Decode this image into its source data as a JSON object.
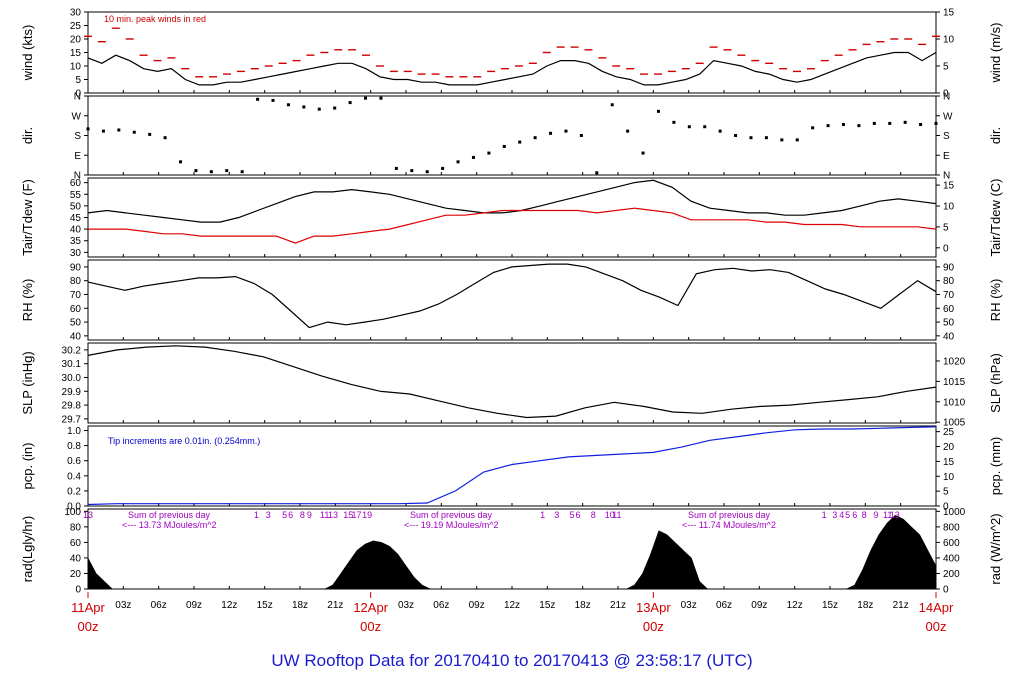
{
  "title": "UW Rooftop Data for 20170410  to  20170413 @ 23:58:17  (UTC)",
  "chart_data": {
    "type": "line",
    "x_start": "2017-04-11 00z",
    "x_end": "2017-04-14 00z",
    "panels": [
      {
        "id": "wind",
        "ylabel_left": "wind (kts)",
        "ylabel_right": "wind (m/s)",
        "left_ticks": [
          "0",
          "5",
          "10",
          "15",
          "20",
          "25",
          "30"
        ],
        "right_ticks": [
          "0",
          "5",
          "10",
          "15"
        ],
        "annotation": "10 min. peak winds in red",
        "series": [
          {
            "name": "wind (kts)",
            "color": "#000000",
            "values": [
              13,
              11,
              14,
              12,
              9,
              8,
              9,
              5,
              3,
              3,
              4,
              4,
              5,
              6,
              7,
              8,
              9,
              10,
              11,
              11,
              9,
              6,
              5,
              5,
              4,
              4,
              3,
              3,
              3,
              4,
              5,
              6,
              7,
              10,
              12,
              12,
              11,
              8,
              6,
              5,
              3,
              3,
              4,
              5,
              7,
              12,
              11,
              10,
              8,
              7,
              5,
              4,
              5,
              7,
              9,
              11,
              13,
              14,
              15,
              15,
              12,
              15
            ]
          },
          {
            "name": "peak wind",
            "color": "#d00000",
            "values": [
              21,
              19,
              24,
              20,
              14,
              12,
              13,
              9,
              6,
              6,
              7,
              8,
              9,
              10,
              11,
              12,
              14,
              15,
              16,
              16,
              14,
              10,
              8,
              8,
              7,
              7,
              6,
              6,
              6,
              8,
              9,
              10,
              11,
              15,
              17,
              17,
              16,
              13,
              10,
              9,
              7,
              7,
              8,
              9,
              11,
              17,
              16,
              14,
              12,
              11,
              9,
              8,
              9,
              12,
              14,
              16,
              18,
              19,
              20,
              20,
              18,
              21
            ]
          }
        ]
      },
      {
        "id": "dir",
        "ylabel_left": "dir.",
        "ylabel_right": "dir.",
        "left_ticks": [
          "N",
          "E",
          "S",
          "W",
          "N"
        ],
        "right_ticks": [
          "N",
          "E",
          "S",
          "W",
          "N"
        ],
        "series": [
          {
            "name": "wind direction (deg)",
            "values": [
              210,
              200,
              205,
              195,
              185,
              170,
              60,
              20,
              15,
              20,
              15,
              345,
              340,
              320,
              310,
              300,
              305,
              330,
              350,
              350,
              30,
              20,
              15,
              30,
              60,
              80,
              100,
              130,
              150,
              170,
              190,
              200,
              180,
              10,
              320,
              200,
              100,
              290,
              240,
              220,
              220,
              200,
              180,
              170,
              170,
              160,
              160,
              215,
              225,
              230,
              225,
              235,
              235,
              240,
              230,
              235
            ]
          }
        ]
      },
      {
        "id": "temp",
        "ylabel_left": "Tair/Tdew (F)",
        "ylabel_right": "Tair/Tdew (C)",
        "left_ticks": [
          "30",
          "35",
          "40",
          "45",
          "50",
          "55",
          "60"
        ],
        "right_ticks": [
          "0",
          "5",
          "10",
          "15"
        ],
        "series": [
          {
            "name": "Tair",
            "color": "#000000",
            "values": [
              47,
              48,
              47,
              46,
              45,
              44,
              43,
              43,
              45,
              48,
              51,
              54,
              56,
              56,
              57,
              56,
              55,
              53,
              51,
              49,
              48,
              47,
              47,
              48,
              50,
              52,
              54,
              56,
              58,
              60,
              61,
              58,
              52,
              49,
              48,
              47,
              47,
              46,
              46,
              47,
              48,
              50,
              52,
              53,
              52,
              51
            ]
          },
          {
            "name": "Tdew",
            "color": "#e00000",
            "values": [
              40,
              40,
              40,
              39,
              38,
              38,
              37,
              37,
              37,
              37,
              37,
              34,
              37,
              37,
              38,
              39,
              40,
              42,
              44,
              46,
              46,
              47,
              48,
              48,
              48,
              48,
              48,
              47,
              48,
              49,
              48,
              47,
              44,
              44,
              44,
              44,
              43,
              43,
              42,
              42,
              42,
              41,
              41,
              41,
              41,
              40
            ]
          }
        ]
      },
      {
        "id": "rh",
        "ylabel_left": "RH (%)",
        "ylabel_right": "RH (%)",
        "left_ticks": [
          "40",
          "50",
          "60",
          "70",
          "80",
          "90"
        ],
        "right_ticks": [
          "40",
          "50",
          "60",
          "70",
          "80",
          "90"
        ],
        "series": [
          {
            "name": "RH",
            "color": "#000000",
            "values": [
              79,
              76,
              73,
              76,
              78,
              80,
              82,
              82,
              83,
              78,
              70,
              58,
              46,
              50,
              48,
              50,
              52,
              55,
              58,
              63,
              70,
              78,
              86,
              90,
              91,
              92,
              92,
              90,
              85,
              80,
              73,
              68,
              62,
              85,
              88,
              89,
              87,
              88,
              86,
              80,
              74,
              70,
              65,
              60,
              70,
              80,
              72
            ]
          }
        ]
      },
      {
        "id": "slp",
        "ylabel_left": "SLP (inHg)",
        "ylabel_right": "SLP (hPa)",
        "left_ticks": [
          "29.7",
          "29.8",
          "29.9",
          "30.0",
          "30.1",
          "30.2"
        ],
        "right_ticks": [
          "1005",
          "1010",
          "1015",
          "1020"
        ],
        "series": [
          {
            "name": "SLP",
            "color": "#000000",
            "values": [
              30.16,
              30.2,
              30.22,
              30.23,
              30.22,
              30.19,
              30.15,
              30.08,
              30.01,
              29.95,
              29.9,
              29.88,
              29.83,
              29.78,
              29.74,
              29.71,
              29.72,
              29.78,
              29.82,
              29.79,
              29.75,
              29.74,
              29.77,
              29.79,
              29.8,
              29.82,
              29.84,
              29.86,
              29.9,
              29.93
            ]
          }
        ]
      },
      {
        "id": "pcp",
        "ylabel_left": "pcp. (in)",
        "ylabel_right": "pcp. (mm)",
        "left_ticks": [
          "0.0",
          "0.2",
          "0.4",
          "0.6",
          "0.8",
          "1.0"
        ],
        "right_ticks": [
          "0",
          "5",
          "10",
          "15",
          "20",
          "25"
        ],
        "annotation": "Tip increments are 0.01in. (0.254mm.)",
        "series": [
          {
            "name": "precip",
            "color": "#1020e0",
            "values": [
              0.02,
              0.03,
              0.03,
              0.03,
              0.03,
              0.03,
              0.03,
              0.03,
              0.03,
              0.03,
              0.03,
              0.03,
              0.04,
              0.2,
              0.45,
              0.55,
              0.6,
              0.65,
              0.67,
              0.69,
              0.71,
              0.78,
              0.87,
              0.92,
              0.97,
              1.01,
              1.02,
              1.02,
              1.03,
              1.04,
              1.05
            ]
          }
        ]
      },
      {
        "id": "rad",
        "ylabel_left": "rad(Lgly/hr)",
        "ylabel_right": "rad (W/m^2)",
        "left_ticks": [
          "0",
          "20",
          "40",
          "60",
          "80",
          "100"
        ],
        "right_ticks": [
          "0",
          "200",
          "400",
          "600",
          "800",
          "1000"
        ],
        "annotations": [
          {
            "label": "Sum of previous day",
            "value": "<--- 13.73 MJoules/m^2"
          },
          {
            "label": "Sum of previous day",
            "value": "<--- 19.19 MJoules/m^2"
          },
          {
            "label": "Sum of previous day",
            "value": "<--- 11.74 MJoules/m^2"
          }
        ],
        "hour_marks": [
          {
            "day": 0,
            "marks": [
              {
                "h": 0,
                "t": "13"
              },
              {
                "h": 14.3,
                "t": "1"
              },
              {
                "h": 15.3,
                "t": "3"
              },
              {
                "h": 16.7,
                "t": "5"
              },
              {
                "h": 17.2,
                "t": "6"
              },
              {
                "h": 18.2,
                "t": "8"
              },
              {
                "h": 18.8,
                "t": "9"
              },
              {
                "h": 20.1,
                "t": "11"
              },
              {
                "h": 20.8,
                "t": "13"
              },
              {
                "h": 22.1,
                "t": "15"
              },
              {
                "h": 22.8,
                "t": "17"
              },
              {
                "h": 23.7,
                "t": "19"
              }
            ]
          },
          {
            "day": 1,
            "marks": [
              {
                "h": 14.6,
                "t": "1"
              },
              {
                "h": 15.8,
                "t": "3"
              },
              {
                "h": 17.1,
                "t": "5"
              },
              {
                "h": 17.6,
                "t": "6"
              },
              {
                "h": 18.9,
                "t": "8"
              },
              {
                "h": 20.3,
                "t": "10"
              },
              {
                "h": 20.9,
                "t": "11"
              }
            ]
          },
          {
            "day": 2,
            "marks": [
              {
                "h": 14.5,
                "t": "1"
              },
              {
                "h": 15.4,
                "t": "3"
              },
              {
                "h": 16.0,
                "t": "4"
              },
              {
                "h": 16.5,
                "t": "5"
              },
              {
                "h": 17.1,
                "t": "6"
              },
              {
                "h": 17.9,
                "t": "8"
              },
              {
                "h": 18.9,
                "t": "9"
              },
              {
                "h": 19.9,
                "t": "11"
              },
              {
                "h": 20.5,
                "t": "13"
              }
            ]
          }
        ],
        "series": [
          {
            "name": "radiation",
            "color": "#000000",
            "fill": true,
            "values": [
              40,
              20,
              10,
              0,
              0,
              0,
              0,
              0,
              0,
              0,
              0,
              0,
              0,
              0,
              0,
              0,
              0,
              0,
              0,
              0,
              0,
              0,
              0,
              0,
              0,
              0,
              0,
              0,
              0,
              0,
              5,
              20,
              35,
              50,
              58,
              62,
              60,
              55,
              45,
              30,
              15,
              5,
              0,
              0,
              0,
              0,
              0,
              0,
              0,
              0,
              0,
              0,
              0,
              0,
              0,
              0,
              0,
              0,
              0,
              0,
              0,
              0,
              0,
              0,
              0,
              0,
              0,
              5,
              20,
              45,
              75,
              70,
              60,
              50,
              40,
              10,
              0,
              0,
              0,
              0,
              0,
              0,
              0,
              0,
              0,
              0,
              0,
              0,
              0,
              0,
              0,
              0,
              0,
              0,
              5,
              25,
              50,
              70,
              85,
              95,
              90,
              80,
              70,
              50,
              30
            ]
          }
        ]
      }
    ],
    "x_ticks_hours": [
      "03z",
      "06z",
      "09z",
      "12z",
      "15z",
      "18z",
      "21z",
      "03z",
      "06z",
      "09z",
      "12z",
      "15z",
      "18z",
      "21z",
      "03z",
      "06z",
      "09z",
      "12z",
      "15z",
      "18z",
      "21z"
    ],
    "x_date_labels": [
      {
        "date": "11Apr",
        "hour": "00z"
      },
      {
        "date": "12Apr",
        "hour": "00z"
      },
      {
        "date": "13Apr",
        "hour": "00z"
      },
      {
        "date": "14Apr",
        "hour": "00z"
      }
    ]
  }
}
